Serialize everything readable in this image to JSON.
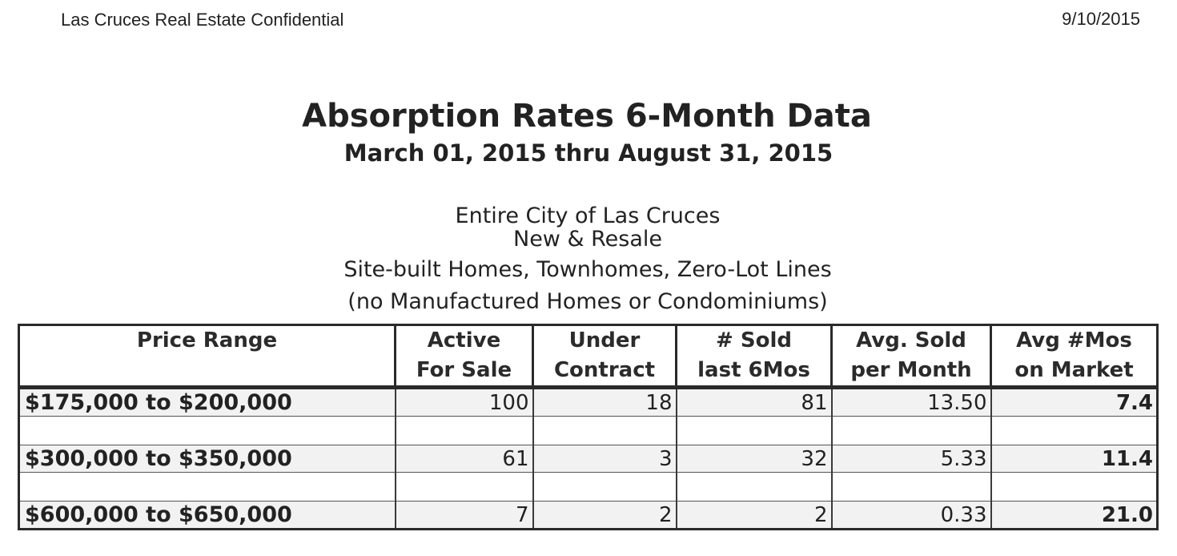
{
  "header": {
    "company": "Las Cruces Real Estate Confidential",
    "date": "9/10/2015"
  },
  "title": "Absorption Rates 6-Month Data",
  "subtitle": "March 01, 2015 thru August 31, 2015",
  "description": {
    "line1": "Entire City of Las Cruces",
    "line2": "New & Resale",
    "line3": "Site-built Homes, Townhomes, Zero-Lot Lines",
    "line4": "(no Manufactured Homes or Condominiums)"
  },
  "table": {
    "columns": [
      {
        "line1": "Price Range",
        "line2": ""
      },
      {
        "line1": "Active",
        "line2": "For Sale"
      },
      {
        "line1": "Under",
        "line2": "Contract"
      },
      {
        "line1": "# Sold",
        "line2": "last 6Mos"
      },
      {
        "line1": "Avg. Sold",
        "line2": "per Month"
      },
      {
        "line1": "Avg #Mos",
        "line2": "on Market"
      }
    ],
    "rows": [
      {
        "range": "$175,000 to $200,000",
        "active": "100",
        "under_contract": "18",
        "sold": "81",
        "avg_sold": "13.50",
        "avg_mos": "7.4"
      },
      {
        "range": "",
        "active": "",
        "under_contract": "",
        "sold": "",
        "avg_sold": "",
        "avg_mos": ""
      },
      {
        "range": "$300,000 to $350,000",
        "active": "61",
        "under_contract": "3",
        "sold": "32",
        "avg_sold": "5.33",
        "avg_mos": "11.4"
      },
      {
        "range": "",
        "active": "",
        "under_contract": "",
        "sold": "",
        "avg_sold": "",
        "avg_mos": ""
      },
      {
        "range": "$600,000 to $650,000",
        "active": "7",
        "under_contract": "2",
        "sold": "2",
        "avg_sold": "0.33",
        "avg_mos": "21.0"
      }
    ]
  }
}
